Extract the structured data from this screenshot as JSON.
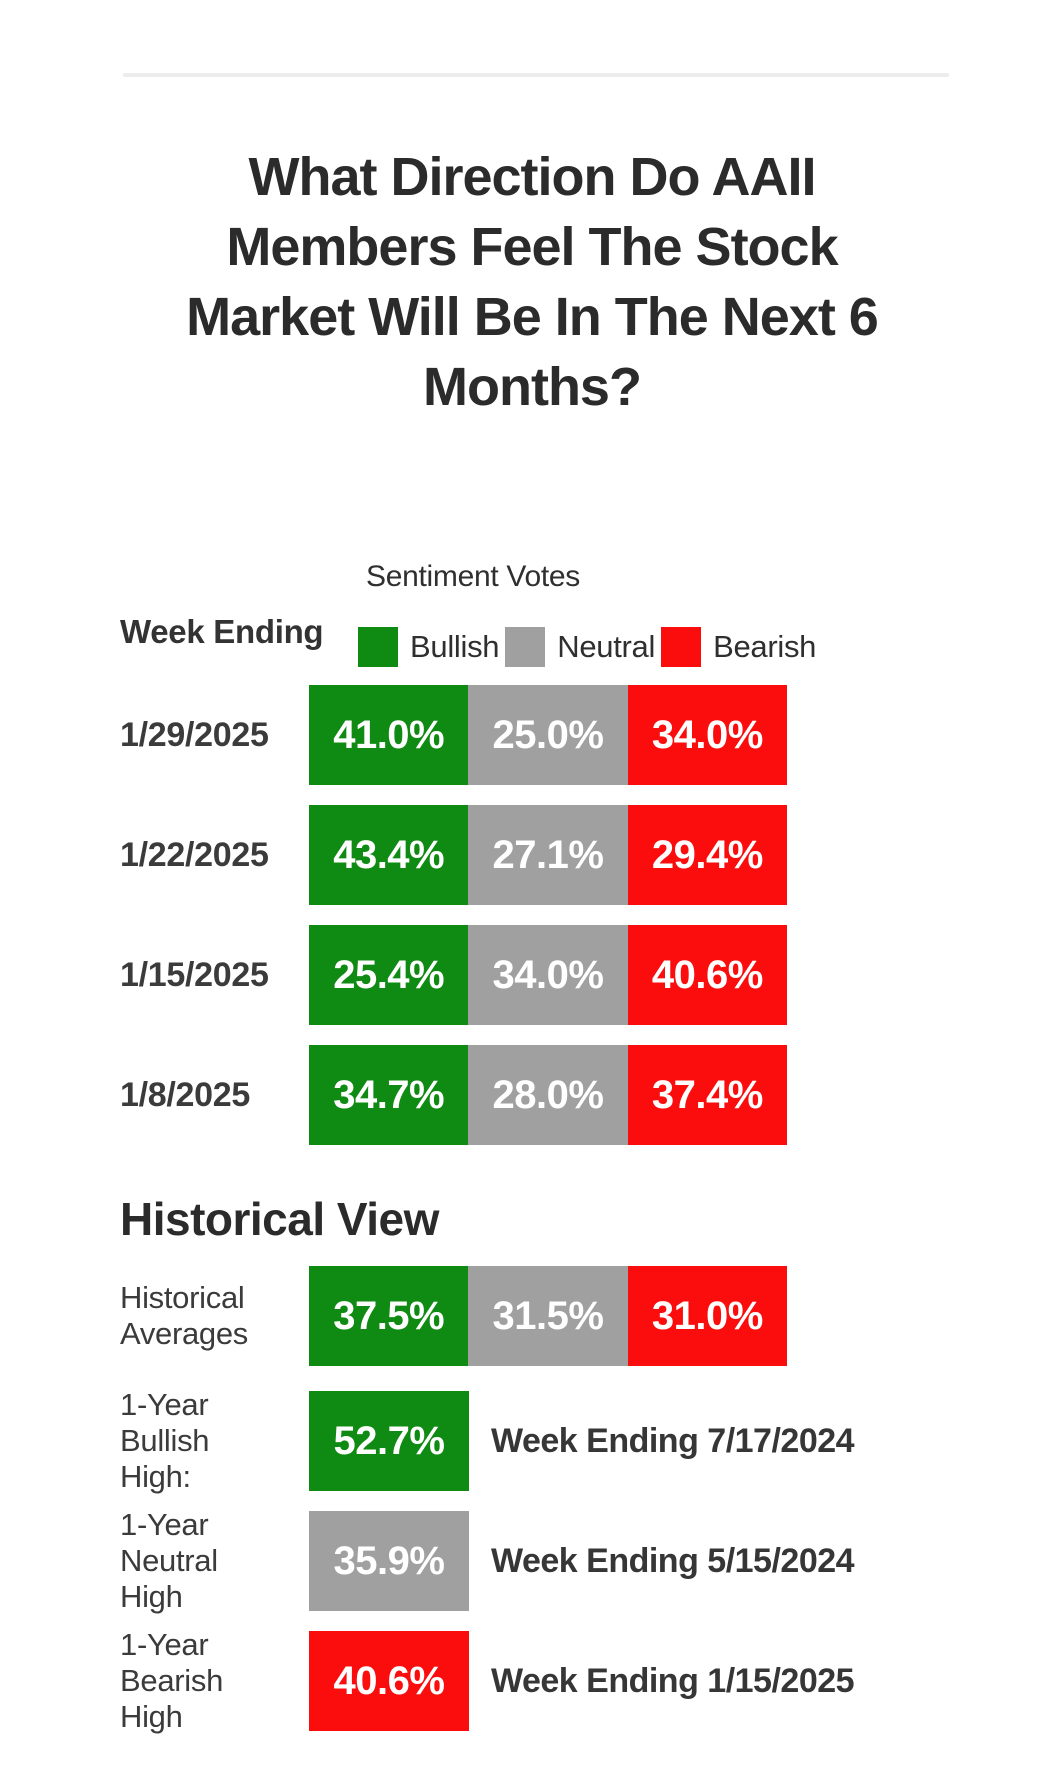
{
  "title_lines": [
    "What Direction Do AAII",
    "Members Feel The Stock",
    "Market Will Be In The Next 6",
    "Months?"
  ],
  "legend": {
    "heading": "Sentiment Votes",
    "week_ending_label": "Week Ending",
    "items": [
      {
        "label": "Bullish"
      },
      {
        "label": "Neutral"
      },
      {
        "label": "Bearish"
      }
    ]
  },
  "colors": {
    "bullish": "#0f8a12",
    "neutral": "#a0a0a0",
    "bearish": "#fb0d0d",
    "heading_text": "#2b2b2b",
    "label_text": "#3b3b3b",
    "divider": "#ececec"
  },
  "weekly": {
    "rows": [
      {
        "date": "1/29/2025",
        "bullish": "41.0%",
        "neutral": "25.0%",
        "bearish": "34.0%"
      },
      {
        "date": "1/22/2025",
        "bullish": "43.4%",
        "neutral": "27.1%",
        "bearish": "29.4%"
      },
      {
        "date": "1/15/2025",
        "bullish": "25.4%",
        "neutral": "34.0%",
        "bearish": "40.6%"
      },
      {
        "date": "1/8/2025",
        "bullish": "34.7%",
        "neutral": "28.0%",
        "bearish": "37.4%"
      }
    ]
  },
  "historical": {
    "heading": "Historical View",
    "averages": {
      "label_lines": [
        "Historical",
        "Averages"
      ],
      "bullish": "37.5%",
      "neutral": "31.5%",
      "bearish": "31.0%"
    },
    "highs": [
      {
        "label_lines": [
          "1-Year",
          "Bullish",
          "High:"
        ],
        "value": "52.7%",
        "week": "Week Ending 7/17/2024"
      },
      {
        "label_lines": [
          "1-Year",
          "Neutral",
          "High"
        ],
        "value": "35.9%",
        "week": "Week Ending 5/15/2024"
      },
      {
        "label_lines": [
          "1-Year",
          "Bearish",
          "High"
        ],
        "value": "40.6%",
        "week": "Week Ending 1/15/2025"
      }
    ]
  },
  "chart_data": {
    "type": "bar",
    "title": "What Direction Do AAII Members Feel The Stock Market Will Be In The Next 6 Months?",
    "subtitle": "Sentiment Votes",
    "categories": [
      "1/29/2025",
      "1/22/2025",
      "1/15/2025",
      "1/8/2025"
    ],
    "series": [
      {
        "name": "Bullish",
        "color": "#0f8a12",
        "values": [
          41.0,
          43.4,
          25.4,
          34.7
        ]
      },
      {
        "name": "Neutral",
        "color": "#a0a0a0",
        "values": [
          25.0,
          27.1,
          34.0,
          28.0
        ]
      },
      {
        "name": "Bearish",
        "color": "#fb0d0d",
        "values": [
          34.0,
          29.4,
          40.6,
          37.4
        ]
      }
    ],
    "unit": "%",
    "legend_position": "top",
    "layout_note": "segments drawn as equal thirds regardless of value",
    "historical": {
      "averages": {
        "Bullish": 37.5,
        "Neutral": 31.5,
        "Bearish": 31.0
      },
      "one_year_bullish_high": {
        "value": 52.7,
        "week_ending": "7/17/2024"
      },
      "one_year_neutral_high": {
        "value": 35.9,
        "week_ending": "5/15/2024"
      },
      "one_year_bearish_high": {
        "value": 40.6,
        "week_ending": "1/15/2025"
      }
    }
  }
}
